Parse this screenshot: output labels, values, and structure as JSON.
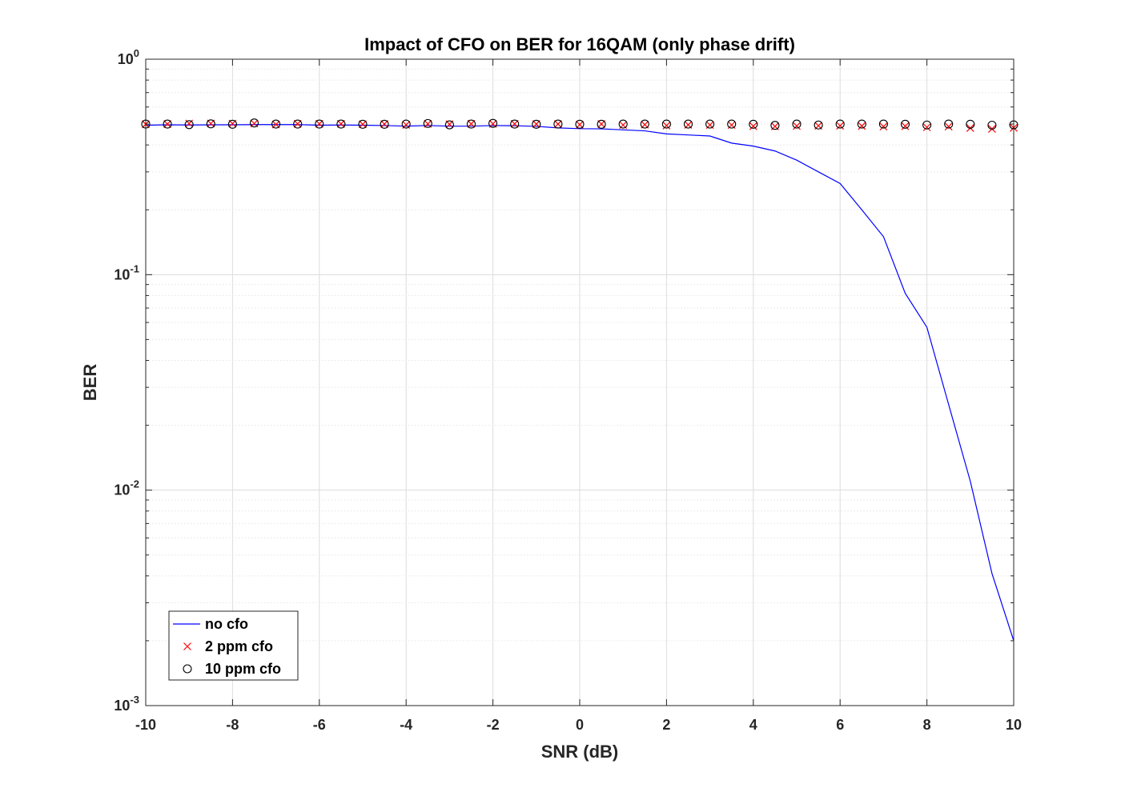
{
  "chart_data": {
    "type": "line",
    "title": "Impact of CFO on BER for 16QAM (only phase drift)",
    "xlabel": "SNR (dB)",
    "ylabel": "BER",
    "xlim": [
      -10,
      10
    ],
    "ylim": [
      0.001,
      1
    ],
    "yscale": "log",
    "grid": true,
    "legend_position": "bottom-left",
    "xticks": [
      "-10",
      "-8",
      "-6",
      "-4",
      "-2",
      "0",
      "2",
      "4",
      "6",
      "8",
      "10"
    ],
    "yticks": [
      {
        "base": "10",
        "exp": "-3"
      },
      {
        "base": "10",
        "exp": "-2"
      },
      {
        "base": "10",
        "exp": "-1"
      },
      {
        "base": "10",
        "exp": "0"
      }
    ],
    "x": [
      -10,
      -9.5,
      -9,
      -8.5,
      -8,
      -7.5,
      -7,
      -6.5,
      -6,
      -5.5,
      -5,
      -4.5,
      -4,
      -3.5,
      -3,
      -2.5,
      -2,
      -1.5,
      -1,
      -0.5,
      0,
      0.5,
      1,
      1.5,
      2,
      2.5,
      3,
      3.5,
      4,
      4.5,
      5,
      5.5,
      6,
      6.5,
      7,
      7.5,
      8,
      8.5,
      9,
      9.5,
      10
    ],
    "series": [
      {
        "name": "no cfo",
        "color": "#0000ff",
        "style": "line",
        "values": [
          0.494,
          0.496,
          0.495,
          0.496,
          0.496,
          0.497,
          0.497,
          0.497,
          0.494,
          0.495,
          0.494,
          0.492,
          0.489,
          0.492,
          0.489,
          0.489,
          0.492,
          0.491,
          0.488,
          0.48,
          0.476,
          0.475,
          0.47,
          0.465,
          0.45,
          0.445,
          0.44,
          0.408,
          0.395,
          0.375,
          0.34,
          0.3,
          0.265,
          0.2,
          0.15,
          0.082,
          0.057,
          0.025,
          0.011,
          0.0041,
          0.002
        ]
      },
      {
        "name": "2 ppm cfo",
        "color": "#ff0000",
        "style": "x",
        "values": [
          0.499,
          0.5,
          0.503,
          0.503,
          0.502,
          0.503,
          0.498,
          0.501,
          0.501,
          0.501,
          0.499,
          0.5,
          0.496,
          0.501,
          0.499,
          0.501,
          0.501,
          0.501,
          0.5,
          0.5,
          0.497,
          0.5,
          0.495,
          0.497,
          0.492,
          0.496,
          0.495,
          0.495,
          0.489,
          0.488,
          0.49,
          0.491,
          0.491,
          0.49,
          0.487,
          0.489,
          0.483,
          0.487,
          0.479,
          0.475,
          0.48
        ]
      },
      {
        "name": "10 ppm cfo",
        "color": "#000000",
        "style": "o",
        "values": [
          0.5,
          0.5,
          0.497,
          0.501,
          0.499,
          0.506,
          0.5,
          0.5,
          0.5,
          0.5,
          0.499,
          0.499,
          0.5,
          0.503,
          0.496,
          0.5,
          0.504,
          0.5,
          0.499,
          0.5,
          0.499,
          0.499,
          0.5,
          0.5,
          0.5,
          0.5,
          0.5,
          0.5,
          0.499,
          0.493,
          0.5,
          0.495,
          0.5,
          0.5,
          0.5,
          0.499,
          0.495,
          0.5,
          0.499,
          0.494,
          0.496
        ]
      }
    ]
  }
}
